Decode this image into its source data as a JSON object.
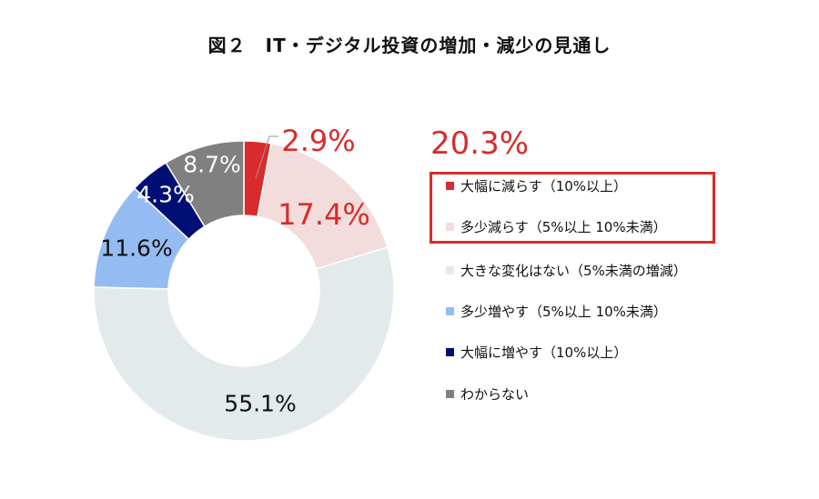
{
  "title": "図２　IT・デジタル投資の増加・減少の見通し",
  "chart_data": {
    "type": "pie",
    "donut": true,
    "title": "図２　IT・デジタル投資の増加・減少の見通し",
    "categories": [
      "大幅に減らす（10%以上）",
      "多少減らす（5%以上 10%未満）",
      "大きな変化はない（5%未満の増減）",
      "多少増やす（5%以上 10%未満）",
      "大幅に増やす（10%以上）",
      "わからない"
    ],
    "values": [
      2.9,
      17.4,
      55.1,
      11.6,
      4.3,
      8.7
    ],
    "labels": [
      "2.9%",
      "17.4%",
      "55.1%",
      "11.6%",
      "4.3%",
      "8.7%"
    ],
    "colors": [
      "#D92B2B",
      "#F2DCDC",
      "#E3EAEC",
      "#95BCF2",
      "#000F73",
      "#808080"
    ],
    "label_colors": [
      "#D92B2B",
      "#D92B2B",
      "#111111",
      "#111111",
      "#ffffff",
      "#ffffff"
    ],
    "legend_placement": "right",
    "annotation": "20.3%",
    "highlighted_legend_items": [
      0,
      1
    ]
  }
}
